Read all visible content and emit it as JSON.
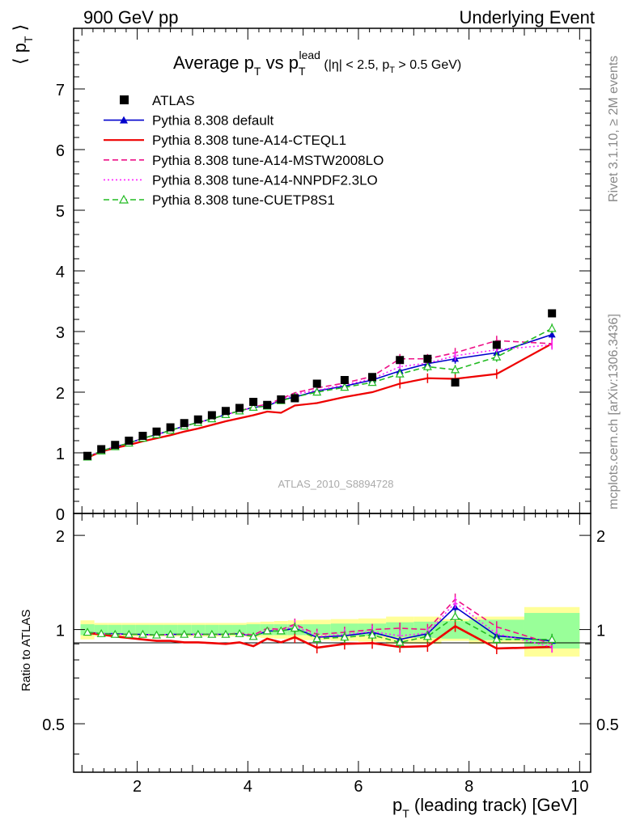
{
  "header": {
    "left": "900 GeV pp",
    "right": "Underlying Event"
  },
  "side_labels": {
    "rivet": "Rivet 3.1.10, ≥ 2M events",
    "mcplots": "mcplots.cern.ch [arXiv:1306.3436]"
  },
  "watermark": "ATLAS_2010_S8894728",
  "colors": {
    "atlas": "#000000",
    "default": "#0000cc",
    "cteql1": "#ee0000",
    "mstw": "#ee1188",
    "nnpdf": "#ff22ff",
    "cuetp8s1": "#22bb22",
    "band_yellow": "#ffff99",
    "band_green": "#99ff99"
  },
  "chart_data": [
    {
      "type": "scatter",
      "title": "Average p_T vs p_T^lead (|η| < 2.5, p_T > 0.5 GeV)",
      "ylabel": "⟨ p_T ⟩",
      "xlim": [
        0.85,
        10.2
      ],
      "ylim": [
        0,
        8
      ],
      "legend_position": "top-left",
      "grid": false,
      "x": [
        1.1,
        1.35,
        1.6,
        1.85,
        2.1,
        2.35,
        2.6,
        2.85,
        3.1,
        3.35,
        3.6,
        3.85,
        4.1,
        4.35,
        4.6,
        4.85,
        5.25,
        5.75,
        6.25,
        6.75,
        7.25,
        7.75,
        8.5,
        9.5
      ],
      "series": [
        {
          "name": "ATLAS",
          "style": "square-marker",
          "color": "#000000",
          "values": [
            0.95,
            1.06,
            1.13,
            1.2,
            1.28,
            1.35,
            1.42,
            1.49,
            1.55,
            1.62,
            1.69,
            1.74,
            1.84,
            1.79,
            1.88,
            1.9,
            2.14,
            2.2,
            2.25,
            2.53,
            2.55,
            2.16,
            2.78,
            3.3
          ]
        },
        {
          "name": "Pythia 8.308 default",
          "style": "solid-triangle",
          "color": "#0000cc",
          "values": [
            0.93,
            1.03,
            1.1,
            1.16,
            1.24,
            1.3,
            1.37,
            1.44,
            1.5,
            1.56,
            1.63,
            1.69,
            1.75,
            1.77,
            1.87,
            1.92,
            2.02,
            2.1,
            2.2,
            2.35,
            2.47,
            2.55,
            2.65,
            2.95
          ]
        },
        {
          "name": "Pythia 8.308 tune-A14-CTEQL1",
          "style": "solid",
          "color": "#ee0000",
          "values": [
            0.92,
            1.02,
            1.08,
            1.13,
            1.19,
            1.24,
            1.29,
            1.35,
            1.4,
            1.46,
            1.52,
            1.57,
            1.62,
            1.68,
            1.66,
            1.78,
            1.82,
            1.92,
            2.0,
            2.14,
            2.23,
            2.22,
            2.3,
            2.8
          ]
        },
        {
          "name": "Pythia 8.308 tune-A14-MSTW2008LO",
          "style": "dashed",
          "color": "#ee1188",
          "values": [
            0.93,
            1.03,
            1.1,
            1.16,
            1.24,
            1.3,
            1.37,
            1.44,
            1.5,
            1.56,
            1.63,
            1.69,
            1.76,
            1.8,
            1.89,
            1.99,
            2.07,
            2.15,
            2.26,
            2.55,
            2.55,
            2.65,
            2.85,
            2.8
          ]
        },
        {
          "name": "Pythia 8.308 tune-A14-NNPDF2.3LO",
          "style": "dotted",
          "color": "#ff22ff",
          "values": [
            0.93,
            1.03,
            1.1,
            1.16,
            1.24,
            1.3,
            1.37,
            1.44,
            1.5,
            1.56,
            1.63,
            1.69,
            1.75,
            1.79,
            1.87,
            1.97,
            2.03,
            2.12,
            2.22,
            2.42,
            2.48,
            2.6,
            2.7,
            2.78
          ]
        },
        {
          "name": "Pythia 8.308 tune-CUETP8S1",
          "style": "dashed-open-triangle",
          "color": "#22bb22",
          "values": [
            0.93,
            1.03,
            1.1,
            1.16,
            1.24,
            1.3,
            1.37,
            1.44,
            1.5,
            1.56,
            1.63,
            1.69,
            1.75,
            1.77,
            1.86,
            1.92,
            2.0,
            2.08,
            2.16,
            2.3,
            2.42,
            2.37,
            2.58,
            3.05
          ]
        }
      ]
    },
    {
      "type": "line",
      "xlabel": "p_T (leading track) [GeV]",
      "ylabel": "Ratio to ATLAS",
      "xlim": [
        0.85,
        10.2
      ],
      "ylim": [
        0.35,
        2.35
      ],
      "y_scale": "log",
      "reference": 1.0,
      "x": [
        1.1,
        1.35,
        1.6,
        1.85,
        2.1,
        2.35,
        2.6,
        2.85,
        3.1,
        3.35,
        3.6,
        3.85,
        4.1,
        4.35,
        4.6,
        4.85,
        5.25,
        5.75,
        6.25,
        6.75,
        7.25,
        7.75,
        8.5,
        9.5
      ],
      "bin_edges": [
        0.975,
        1.225,
        1.475,
        1.725,
        1.975,
        2.225,
        2.475,
        2.725,
        2.975,
        3.225,
        3.475,
        3.725,
        3.975,
        4.225,
        4.475,
        4.725,
        5.0,
        5.5,
        6.0,
        6.5,
        7.0,
        7.5,
        8.0,
        9.0,
        10.0
      ],
      "band_green_halfwidth": [
        0.04,
        0.035,
        0.035,
        0.035,
        0.035,
        0.035,
        0.035,
        0.035,
        0.035,
        0.035,
        0.035,
        0.035,
        0.04,
        0.04,
        0.04,
        0.04,
        0.04,
        0.045,
        0.045,
        0.055,
        0.06,
        0.065,
        0.075,
        0.13
      ],
      "band_yellow_halfwidth": [
        0.07,
        0.05,
        0.05,
        0.05,
        0.05,
        0.05,
        0.05,
        0.05,
        0.05,
        0.05,
        0.05,
        0.05,
        0.055,
        0.06,
        0.065,
        0.07,
        0.075,
        0.08,
        0.085,
        0.1,
        0.1,
        0.08,
        0.1,
        0.18
      ],
      "series": [
        {
          "name": "Pythia 8.308 default",
          "color": "#0000cc",
          "style": "solid-triangle",
          "values": [
            0.98,
            0.97,
            0.97,
            0.965,
            0.965,
            0.96,
            0.965,
            0.965,
            0.965,
            0.965,
            0.965,
            0.97,
            0.95,
            0.99,
            0.99,
            1.01,
            0.945,
            0.955,
            0.98,
            0.93,
            0.97,
            1.18,
            0.955,
            0.92
          ]
        },
        {
          "name": "Pythia 8.308 tune-A14-CTEQL1",
          "color": "#ee0000",
          "style": "solid",
          "values": [
            0.975,
            0.965,
            0.95,
            0.94,
            0.93,
            0.92,
            0.92,
            0.91,
            0.91,
            0.905,
            0.9,
            0.91,
            0.885,
            0.935,
            0.91,
            0.945,
            0.875,
            0.9,
            0.905,
            0.88,
            0.885,
            1.025,
            0.87,
            0.88
          ]
        },
        {
          "name": "Pythia 8.308 tune-A14-MSTW2008LO",
          "color": "#ee1188",
          "style": "dashed",
          "values": [
            0.98,
            0.97,
            0.965,
            0.965,
            0.965,
            0.96,
            0.965,
            0.965,
            0.965,
            0.965,
            0.965,
            0.975,
            0.96,
            1.01,
            1.0,
            1.04,
            0.965,
            0.98,
            1.0,
            1.01,
            1.0,
            1.25,
            1.02,
            0.9
          ]
        },
        {
          "name": "Pythia 8.308 tune-A14-NNPDF2.3LO",
          "color": "#ff22ff",
          "style": "dotted",
          "values": [
            0.98,
            0.97,
            0.965,
            0.965,
            0.965,
            0.96,
            0.965,
            0.965,
            0.965,
            0.965,
            0.965,
            0.97,
            0.955,
            1.0,
            0.99,
            1.03,
            0.95,
            0.965,
            0.985,
            0.955,
            0.975,
            1.22,
            0.97,
            0.88
          ]
        },
        {
          "name": "Pythia 8.308 tune-CUETP8S1",
          "color": "#22bb22",
          "style": "dashed-open-triangle",
          "values": [
            0.98,
            0.97,
            0.965,
            0.965,
            0.965,
            0.96,
            0.965,
            0.965,
            0.965,
            0.965,
            0.965,
            0.97,
            0.95,
            0.99,
            0.99,
            1.01,
            0.935,
            0.945,
            0.96,
            0.91,
            0.95,
            1.1,
            0.93,
            0.93
          ]
        }
      ]
    }
  ]
}
